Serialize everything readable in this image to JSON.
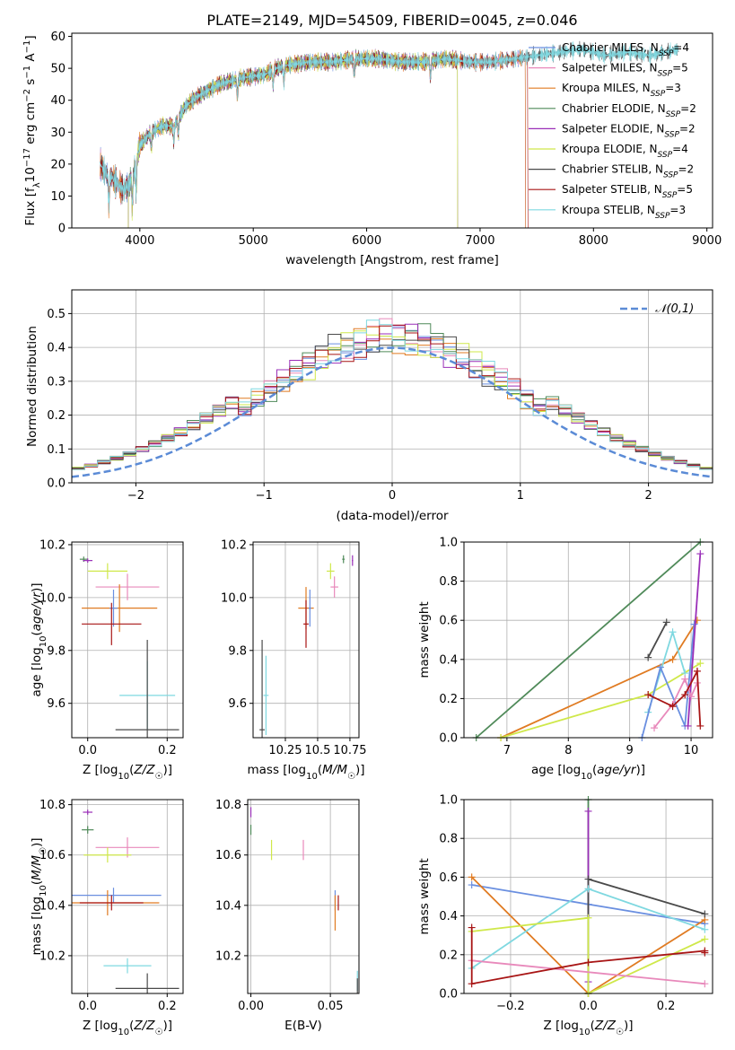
{
  "title": "PLATE=2149, MJD=54509, FIBERID=0045, z=0.046",
  "colors": {
    "chabrier_miles": "#6a8fe0",
    "salpeter_miles": "#e889bb",
    "kroupa_miles": "#e07b22",
    "chabrier_elodie": "#4f8a59",
    "salpeter_elodie": "#9a2fb8",
    "kroupa_elodie": "#cfe84a",
    "chabrier_stelib": "#4a4a4a",
    "salpeter_stelib": "#a81515",
    "kroupa_stelib": "#7fd8e0"
  },
  "chart_data": [
    {
      "id": "spectrum",
      "type": "line",
      "xlabel": "wavelength [Angstrom, rest frame]",
      "ylabel": "Flux [f_λ10^-17 erg cm^-2 s^-1 A^-1]",
      "xlim": [
        3400,
        9050
      ],
      "ylim": [
        0,
        61
      ],
      "xticks": [
        4000,
        5000,
        6000,
        7000,
        8000,
        9000
      ],
      "yticks": [
        0,
        10,
        20,
        30,
        40,
        50,
        60
      ],
      "legend_position": "top-right",
      "series": [
        {
          "name": "Chabrier MILES, N_SSP=4",
          "key": "chabrier_miles",
          "start": 3650,
          "end": 7400
        },
        {
          "name": "Salpeter MILES, N_SSP=5",
          "key": "salpeter_miles",
          "start": 3650,
          "end": 7400
        },
        {
          "name": "Kroupa MILES, N_SSP=3",
          "key": "kroupa_miles",
          "start": 3650,
          "end": 7400
        },
        {
          "name": "Chabrier ELODIE, N_SSP=2",
          "key": "chabrier_elodie",
          "start": 3900,
          "end": 6800
        },
        {
          "name": "Salpeter ELODIE, N_SSP=2",
          "key": "salpeter_elodie",
          "start": 3900,
          "end": 6800
        },
        {
          "name": "Kroupa ELODIE, N_SSP=4",
          "key": "kroupa_elodie",
          "start": 3900,
          "end": 6800
        },
        {
          "name": "Chabrier STELIB, N_SSP=2",
          "key": "chabrier_stelib",
          "start": 3650,
          "end": 8750
        },
        {
          "name": "Salpeter STELIB, N_SSP=5",
          "key": "salpeter_stelib",
          "start": 3650,
          "end": 7420
        },
        {
          "name": "Kroupa STELIB, N_SSP=3",
          "key": "kroupa_stelib",
          "start": 3650,
          "end": 8750
        }
      ],
      "continuum": {
        "x": [
          3650,
          3700,
          3750,
          3800,
          3850,
          3900,
          3950,
          4000,
          4100,
          4200,
          4300,
          4400,
          4500,
          4700,
          4900,
          5100,
          5200,
          5300,
          5500,
          5700,
          5900,
          6100,
          6300,
          6500,
          6700,
          6900,
          7100,
          7300,
          7500,
          7700,
          7900,
          8100,
          8300,
          8500,
          8750
        ],
        "y": [
          20,
          17,
          16,
          14,
          12,
          13,
          18,
          26,
          30,
          32,
          32,
          38,
          41,
          45,
          47,
          48,
          50,
          51,
          52,
          52,
          53,
          53,
          52,
          52,
          53,
          52,
          52,
          53,
          54,
          55,
          56,
          54,
          55,
          54,
          56
        ]
      }
    },
    {
      "id": "residuals",
      "type": "histogram",
      "xlabel": "(data-model)/error",
      "ylabel": "Normed distribution",
      "xlim": [
        -2.5,
        2.5
      ],
      "ylim": [
        0,
        0.57
      ],
      "xticks": [
        -2,
        -1,
        0,
        1,
        2
      ],
      "yticks": [
        0.0,
        0.1,
        0.2,
        0.3,
        0.4,
        0.5
      ],
      "grid": true,
      "legend_position": "top-right",
      "reference_curve": {
        "name": "𝒩(0,1)",
        "style": "dashed",
        "color": "#5b8bd6"
      },
      "bin_width": 0.1
    },
    {
      "id": "age_vs_Z",
      "type": "scatter",
      "xlabel": "Z [log10(Z/Z☉)]",
      "ylabel": "age  [log10(age/yr)]",
      "xlim": [
        -0.04,
        0.24
      ],
      "ylim": [
        9.47,
        10.21
      ],
      "xticks": [
        0.0,
        0.2
      ],
      "yticks": [
        9.6,
        9.8,
        10.0,
        10.2
      ],
      "grid": true,
      "points": [
        {
          "key": "chabrier_elodie",
          "x": -0.01,
          "y": 10.145,
          "xerr": 0.01,
          "yerr": 0.01
        },
        {
          "key": "salpeter_elodie",
          "x": 0.0,
          "y": 10.14,
          "xerr": 0.012,
          "yerr": 0.008
        },
        {
          "key": "kroupa_elodie",
          "x": 0.05,
          "y": 10.1,
          "xerr": 0.05,
          "yerr": 0.03
        },
        {
          "key": "salpeter_miles",
          "x": 0.1,
          "y": 10.04,
          "xerr": 0.08,
          "yerr": 0.05
        },
        {
          "key": "kroupa_miles",
          "x": 0.08,
          "y": 9.96,
          "xerr": 0.095,
          "yerr": 0.09
        },
        {
          "key": "chabrier_miles",
          "x": 0.065,
          "y": 9.96,
          "xerr": 0.01,
          "yerr": 0.07
        },
        {
          "key": "salpeter_stelib",
          "x": 0.06,
          "y": 9.9,
          "xerr": 0.075,
          "yerr": 0.08
        },
        {
          "key": "kroupa_stelib",
          "x": 0.15,
          "y": 9.63,
          "xerr": 0.07,
          "yerr": 0.13
        },
        {
          "key": "chabrier_stelib",
          "x": 0.15,
          "y": 9.5,
          "xerr": 0.08,
          "yerr": 0.34
        }
      ]
    },
    {
      "id": "age_vs_mass",
      "type": "scatter",
      "xlabel": "mass [log10(M/M☉)]",
      "ylabel": "",
      "xlim": [
        10.0,
        10.82
      ],
      "ylim": [
        9.47,
        10.21
      ],
      "xticks": [
        10.25,
        10.5,
        10.75
      ],
      "yticks": [
        9.6,
        9.8,
        10.0,
        10.2
      ],
      "grid": true,
      "points": [
        {
          "key": "chabrier_elodie",
          "x": 10.7,
          "y": 10.145,
          "xerr": 0.01,
          "yerr": 0.015
        },
        {
          "key": "salpeter_elodie",
          "x": 10.77,
          "y": 10.14,
          "xerr": 0.005,
          "yerr": 0.02
        },
        {
          "key": "kroupa_elodie",
          "x": 10.6,
          "y": 10.1,
          "xerr": 0.03,
          "yerr": 0.03
        },
        {
          "key": "salpeter_miles",
          "x": 10.63,
          "y": 10.04,
          "xerr": 0.03,
          "yerr": 0.04
        },
        {
          "key": "kroupa_miles",
          "x": 10.41,
          "y": 9.96,
          "xerr": 0.06,
          "yerr": 0.08
        },
        {
          "key": "chabrier_miles",
          "x": 10.44,
          "y": 9.96,
          "xerr": 0.01,
          "yerr": 0.07
        },
        {
          "key": "salpeter_stelib",
          "x": 10.41,
          "y": 9.9,
          "xerr": 0.02,
          "yerr": 0.09
        },
        {
          "key": "kroupa_stelib",
          "x": 10.1,
          "y": 9.63,
          "xerr": 0.02,
          "yerr": 0.15
        },
        {
          "key": "chabrier_stelib",
          "x": 10.07,
          "y": 9.5,
          "xerr": 0.02,
          "yerr": 0.34
        }
      ]
    },
    {
      "id": "weight_vs_age",
      "type": "line",
      "xlabel": "age  [log10(age/yr)]",
      "ylabel": "mass weight",
      "xlim": [
        6.3,
        10.35
      ],
      "ylim": [
        0,
        1
      ],
      "xticks": [
        7,
        8,
        9,
        10
      ],
      "yticks": [
        0.0,
        0.2,
        0.4,
        0.6,
        0.8,
        1.0
      ],
      "grid": true,
      "series": [
        {
          "key": "chabrier_elodie",
          "x": [
            6.5,
            10.15
          ],
          "y": [
            0.0,
            1.0
          ]
        },
        {
          "key": "kroupa_miles",
          "x": [
            6.9,
            9.7,
            10.1
          ],
          "y": [
            0.0,
            0.4,
            0.6
          ]
        },
        {
          "key": "kroupa_elodie",
          "x": [
            6.9,
            9.3,
            10.15
          ],
          "y": [
            0.0,
            0.22,
            0.38
          ]
        },
        {
          "key": "chabrier_stelib",
          "x": [
            9.3,
            9.6
          ],
          "y": [
            0.41,
            0.59
          ]
        },
        {
          "key": "kroupa_stelib",
          "x": [
            9.3,
            9.7,
            9.9
          ],
          "y": [
            0.13,
            0.54,
            0.33
          ]
        },
        {
          "key": "chabrier_miles",
          "x": [
            9.2,
            9.5,
            9.9,
            10.05
          ],
          "y": [
            0.0,
            0.36,
            0.06,
            0.58
          ]
        },
        {
          "key": "salpeter_elodie",
          "x": [
            9.95,
            10.15
          ],
          "y": [
            0.06,
            0.94
          ]
        },
        {
          "key": "salpeter_miles",
          "x": [
            9.4,
            9.7,
            9.9,
            10.0,
            10.1
          ],
          "y": [
            0.05,
            0.17,
            0.3,
            0.21,
            0.28
          ]
        },
        {
          "key": "salpeter_stelib",
          "x": [
            9.3,
            9.7,
            9.9,
            10.1,
            10.15
          ],
          "y": [
            0.22,
            0.16,
            0.22,
            0.34,
            0.06
          ]
        }
      ]
    },
    {
      "id": "mass_vs_Z",
      "type": "scatter",
      "xlabel": "Z [log10(Z/Z☉)]",
      "ylabel": "mass [log10(M/M☉)]",
      "xlim": [
        -0.04,
        0.24
      ],
      "ylim": [
        10.05,
        10.82
      ],
      "xticks": [
        0.0,
        0.2
      ],
      "yticks": [
        10.2,
        10.4,
        10.6,
        10.8
      ],
      "grid": true,
      "points": [
        {
          "key": "salpeter_elodie",
          "x": 0.0,
          "y": 10.77,
          "xerr": 0.012,
          "yerr": 0.01
        },
        {
          "key": "chabrier_elodie",
          "x": 0.0,
          "y": 10.7,
          "xerr": 0.015,
          "yerr": 0.015
        },
        {
          "key": "salpeter_miles",
          "x": 0.1,
          "y": 10.63,
          "xerr": 0.08,
          "yerr": 0.04
        },
        {
          "key": "kroupa_elodie",
          "x": 0.05,
          "y": 10.6,
          "xerr": 0.06,
          "yerr": 0.03
        },
        {
          "key": "chabrier_miles",
          "x": 0.065,
          "y": 10.44,
          "xerr": 0.12,
          "yerr": 0.03
        },
        {
          "key": "kroupa_miles",
          "x": 0.05,
          "y": 10.41,
          "xerr": 0.13,
          "yerr": 0.05
        },
        {
          "key": "salpeter_stelib",
          "x": 0.06,
          "y": 10.41,
          "xerr": 0.08,
          "yerr": 0.03
        },
        {
          "key": "kroupa_stelib",
          "x": 0.1,
          "y": 10.16,
          "xerr": 0.06,
          "yerr": 0.03
        },
        {
          "key": "chabrier_stelib",
          "x": 0.15,
          "y": 10.07,
          "xerr": 0.08,
          "yerr": 0.06
        }
      ]
    },
    {
      "id": "mass_vs_ebv",
      "type": "scatter",
      "xlabel": "E(B-V)",
      "ylabel": "",
      "xlim": [
        -0.002,
        0.068
      ],
      "ylim": [
        10.05,
        10.82
      ],
      "xticks": [
        0.0,
        0.05
      ],
      "xticklabels": [
        "0.00",
        "0.05"
      ],
      "yticks": [
        10.2,
        10.4,
        10.6,
        10.8
      ],
      "grid": true,
      "points": [
        {
          "key": "salpeter_elodie",
          "x": 0.0,
          "y": 10.77,
          "xerr": 0.0,
          "yerr": 0.02
        },
        {
          "key": "chabrier_elodie",
          "x": 0.0,
          "y": 10.7,
          "xerr": 0.0,
          "yerr": 0.02
        },
        {
          "key": "kroupa_elodie",
          "x": 0.013,
          "y": 10.62,
          "xerr": 0.0,
          "yerr": 0.04
        },
        {
          "key": "salpeter_miles",
          "x": 0.033,
          "y": 10.62,
          "xerr": 0.0,
          "yerr": 0.04
        },
        {
          "key": "chabrier_miles",
          "x": 0.053,
          "y": 10.42,
          "xerr": 0.0,
          "yerr": 0.04
        },
        {
          "key": "kroupa_miles",
          "x": 0.053,
          "y": 10.37,
          "xerr": 0.0,
          "yerr": 0.07
        },
        {
          "key": "salpeter_stelib",
          "x": 0.055,
          "y": 10.41,
          "xerr": 0.0,
          "yerr": 0.03
        },
        {
          "key": "kroupa_stelib",
          "x": 0.067,
          "y": 10.1,
          "xerr": 0.0,
          "yerr": 0.04
        },
        {
          "key": "chabrier_stelib",
          "x": 0.067,
          "y": 10.07,
          "xerr": 0.0,
          "yerr": 0.04
        }
      ]
    },
    {
      "id": "weight_vs_Z",
      "type": "line",
      "xlabel": "Z [log10(Z/Z☉)]",
      "ylabel": "mass weight",
      "xlim": [
        -0.32,
        0.32
      ],
      "ylim": [
        0,
        1
      ],
      "xticks": [
        -0.2,
        0.0,
        0.2
      ],
      "xticklabels": [
        "−0.2",
        "0.0",
        "0.2"
      ],
      "yticks": [
        0.0,
        0.2,
        0.4,
        0.6,
        0.8,
        1.0
      ],
      "grid": true,
      "series": [
        {
          "key": "chabrier_elodie",
          "x": [
            0.0,
            0.0
          ],
          "y": [
            0.0,
            1.0
          ]
        },
        {
          "key": "salpeter_elodie",
          "x": [
            0.0,
            0.0
          ],
          "y": [
            0.06,
            0.94
          ]
        },
        {
          "key": "chabrier_miles",
          "x": [
            -0.3,
            0.0,
            0.3
          ],
          "y": [
            0.56,
            0.46,
            0.36
          ]
        },
        {
          "key": "kroupa_miles",
          "x": [
            -0.3,
            0.0,
            0.3
          ],
          "y": [
            0.6,
            0.0,
            0.38
          ]
        },
        {
          "key": "chabrier_stelib",
          "x": [
            0.0,
            0.0,
            0.3
          ],
          "y": [
            0.0,
            0.59,
            0.41
          ]
        },
        {
          "key": "kroupa_stelib",
          "x": [
            -0.3,
            0.0,
            0.3
          ],
          "y": [
            0.13,
            0.54,
            0.33
          ]
        },
        {
          "key": "kroupa_elodie",
          "x": [
            -0.3,
            0.0,
            0.0,
            0.3
          ],
          "y": [
            0.32,
            0.39,
            0.0,
            0.28
          ]
        },
        {
          "key": "salpeter_miles",
          "x": [
            -0.3,
            0.3
          ],
          "y": [
            0.17,
            0.05
          ]
        },
        {
          "key": "salpeter_stelib",
          "x": [
            -0.3,
            -0.3,
            0.0,
            0.3,
            0.3
          ],
          "y": [
            0.34,
            0.05,
            0.16,
            0.22,
            0.21
          ]
        }
      ]
    }
  ]
}
